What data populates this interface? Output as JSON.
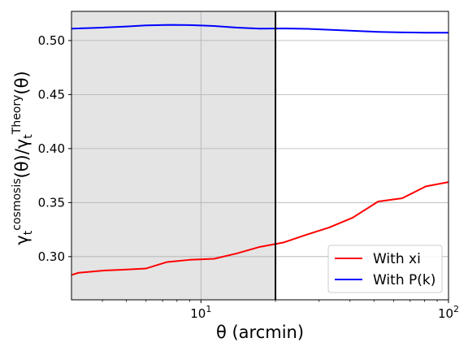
{
  "chart_data": {
    "type": "line",
    "x_scale": "log",
    "xlim": [
      3,
      100
    ],
    "ylim": [
      0.26,
      0.527
    ],
    "xlabel": "θ (arcmin)",
    "ylabel_main": "γ",
    "ylabel_sub1": "t",
    "ylabel_sup1": "cosmosis",
    "ylabel_mid": "(θ)/γ",
    "ylabel_sub2": "t",
    "ylabel_sup2": "Theory",
    "ylabel_end": "(θ)",
    "x_ticks": [
      {
        "value": 10,
        "label_base": "10",
        "label_exp": "1"
      },
      {
        "value": 100,
        "label_base": "10",
        "label_exp": "2"
      }
    ],
    "y_ticks": [
      0.3,
      0.35,
      0.4,
      0.45,
      0.5
    ],
    "y_tick_labels": [
      "0.30",
      "0.35",
      "0.40",
      "0.45",
      "0.50"
    ],
    "grid": true,
    "shaded_region": {
      "x_start": 3,
      "x_end": 20,
      "color": "#e4e4e4"
    },
    "vertical_line": {
      "x": 20,
      "color": "#000000"
    },
    "legend_position": "bottom-right",
    "series": [
      {
        "name": "With xi",
        "color": "#ff0000",
        "x": [
          3.0,
          3.2,
          4.0,
          5.0,
          6.0,
          7.3,
          9.0,
          11.3,
          14.0,
          17.3,
          21.5,
          26.5,
          33.0,
          41.0,
          52.0,
          65.0,
          81.0,
          100.0
        ],
        "y": [
          0.283,
          0.285,
          0.287,
          0.288,
          0.289,
          0.295,
          0.297,
          0.298,
          0.303,
          0.309,
          0.313,
          0.32,
          0.327,
          0.336,
          0.351,
          0.354,
          0.365,
          0.369
        ]
      },
      {
        "name": "With P(k)",
        "color": "#0000ff",
        "x": [
          3.0,
          4.0,
          5.0,
          6.0,
          7.5,
          9.0,
          11.3,
          14.0,
          17.3,
          21.5,
          27.0,
          33.0,
          41.0,
          52.0,
          65.0,
          81.0,
          100.0
        ],
        "y": [
          0.511,
          0.512,
          0.513,
          0.514,
          0.5145,
          0.5143,
          0.5135,
          0.512,
          0.511,
          0.5112,
          0.5108,
          0.51,
          0.509,
          0.508,
          0.5075,
          0.5073,
          0.5073
        ]
      }
    ]
  }
}
